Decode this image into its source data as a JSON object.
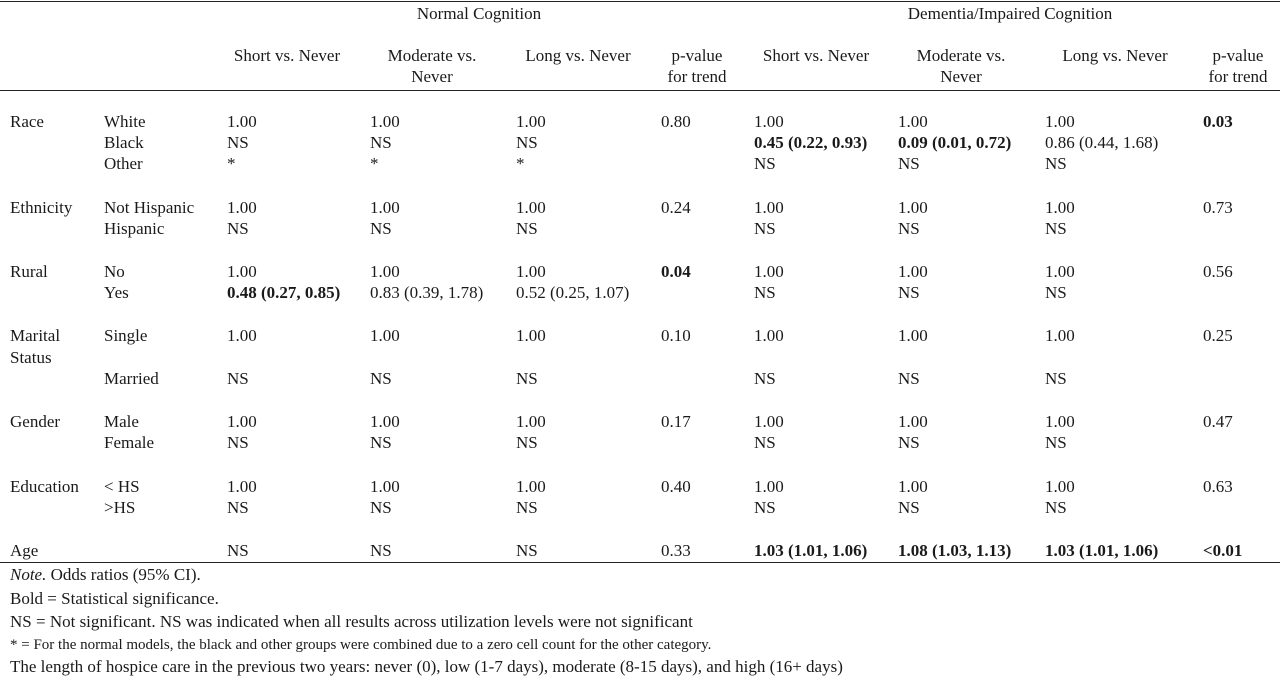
{
  "table": {
    "group_headers": [
      "Normal Cognition",
      "Dementia/Impaired Cognition"
    ],
    "col_headers": [
      [
        "Short vs. Never"
      ],
      [
        "Moderate vs.",
        "Never"
      ],
      [
        "Long vs. Never"
      ],
      [
        "p-value",
        "for trend"
      ],
      [
        "Short vs. Never"
      ],
      [
        "Moderate vs.",
        "Never"
      ],
      [
        "Long vs. Never"
      ],
      [
        "p-value",
        "for trend"
      ]
    ],
    "rows": [
      {
        "var": "Race",
        "level": "White",
        "cells": [
          "1.00",
          "1.00",
          "1.00",
          "0.80",
          "1.00",
          "1.00",
          "1.00",
          "0.03"
        ],
        "bold": [
          false,
          false,
          false,
          false,
          false,
          false,
          false,
          true
        ]
      },
      {
        "var": "",
        "level": "Black",
        "cells": [
          "NS",
          "NS",
          "NS",
          "",
          "0.45 (0.22, 0.93)",
          "0.09 (0.01, 0.72)",
          "0.86 (0.44, 1.68)",
          ""
        ],
        "bold": [
          false,
          false,
          false,
          false,
          true,
          true,
          false,
          false
        ]
      },
      {
        "var": "",
        "level": "Other",
        "cells": [
          "*",
          "*",
          "*",
          "",
          "NS",
          "NS",
          "NS",
          ""
        ],
        "bold": [
          false,
          false,
          false,
          false,
          false,
          false,
          false,
          false
        ]
      },
      {
        "var": "Ethnicity",
        "level": "Not Hispanic",
        "cells": [
          "1.00",
          "1.00",
          "1.00",
          "0.24",
          "1.00",
          "1.00",
          "1.00",
          "0.73"
        ],
        "bold": [
          false,
          false,
          false,
          false,
          false,
          false,
          false,
          false
        ]
      },
      {
        "var": "",
        "level": "Hispanic",
        "cells": [
          "NS",
          "NS",
          "NS",
          "",
          "NS",
          "NS",
          "NS",
          ""
        ],
        "bold": [
          false,
          false,
          false,
          false,
          false,
          false,
          false,
          false
        ]
      },
      {
        "var": "Rural",
        "level": "No",
        "cells": [
          "1.00",
          "1.00",
          "1.00",
          "0.04",
          "1.00",
          "1.00",
          "1.00",
          "0.56"
        ],
        "bold": [
          false,
          false,
          false,
          true,
          false,
          false,
          false,
          false
        ]
      },
      {
        "var": "",
        "level": "Yes",
        "cells": [
          "0.48 (0.27, 0.85)",
          "0.83 (0.39, 1.78)",
          "0.52 (0.25, 1.07)",
          "",
          "NS",
          "NS",
          "NS",
          ""
        ],
        "bold": [
          true,
          false,
          false,
          false,
          false,
          false,
          false,
          false
        ]
      },
      {
        "var": "Marital",
        "level": "Single",
        "cells": [
          "1.00",
          "1.00",
          "1.00",
          "0.10",
          "1.00",
          "1.00",
          "1.00",
          "0.25"
        ],
        "bold": [
          false,
          false,
          false,
          false,
          false,
          false,
          false,
          false
        ]
      },
      {
        "var": "Status",
        "level": "",
        "cells": [
          "",
          "",
          "",
          "",
          "",
          "",
          "",
          ""
        ],
        "bold": [
          false,
          false,
          false,
          false,
          false,
          false,
          false,
          false
        ]
      },
      {
        "var": "",
        "level": "Married",
        "cells": [
          "NS",
          "NS",
          "NS",
          "",
          "NS",
          "NS",
          "NS",
          ""
        ],
        "bold": [
          false,
          false,
          false,
          false,
          false,
          false,
          false,
          false
        ]
      },
      {
        "var": "Gender",
        "level": "Male",
        "cells": [
          "1.00",
          "1.00",
          "1.00",
          "0.17",
          "1.00",
          "1.00",
          "1.00",
          "0.47"
        ],
        "bold": [
          false,
          false,
          false,
          false,
          false,
          false,
          false,
          false
        ]
      },
      {
        "var": "",
        "level": "Female",
        "cells": [
          "NS",
          "NS",
          "NS",
          "",
          "NS",
          "NS",
          "NS",
          ""
        ],
        "bold": [
          false,
          false,
          false,
          false,
          false,
          false,
          false,
          false
        ]
      },
      {
        "var": "Education",
        "level": "< HS",
        "cells": [
          "1.00",
          "1.00",
          "1.00",
          "0.40",
          "1.00",
          "1.00",
          "1.00",
          "0.63"
        ],
        "bold": [
          false,
          false,
          false,
          false,
          false,
          false,
          false,
          false
        ]
      },
      {
        "var": "",
        "level": ">HS",
        "cells": [
          "NS",
          "NS",
          "NS",
          "",
          "NS",
          "NS",
          "NS",
          ""
        ],
        "bold": [
          false,
          false,
          false,
          false,
          false,
          false,
          false,
          false
        ]
      },
      {
        "var": "Age",
        "level": "",
        "cells": [
          "NS",
          "NS",
          "NS",
          "0.33",
          "1.03 (1.01, 1.06)",
          "1.08 (1.03, 1.13)",
          "1.03 (1.01, 1.06)",
          "<0.01"
        ],
        "bold": [
          false,
          false,
          false,
          false,
          true,
          true,
          true,
          true
        ]
      }
    ]
  },
  "notes": {
    "note_label": "Note.",
    "note_text": " Odds ratios (95% CI).",
    "bold_line": "Bold = Statistical significance.",
    "ns_line": "NS = Not significant. NS was indicated when all results across utilization levels were not significant",
    "star_line": "* = For the normal models, the black and other groups were combined due to a zero cell count for the other category.",
    "length_line": "The length of hospice care in the previous two years: never (0), low (1-7 days), moderate (8-15 days), and high (16+ days)"
  }
}
